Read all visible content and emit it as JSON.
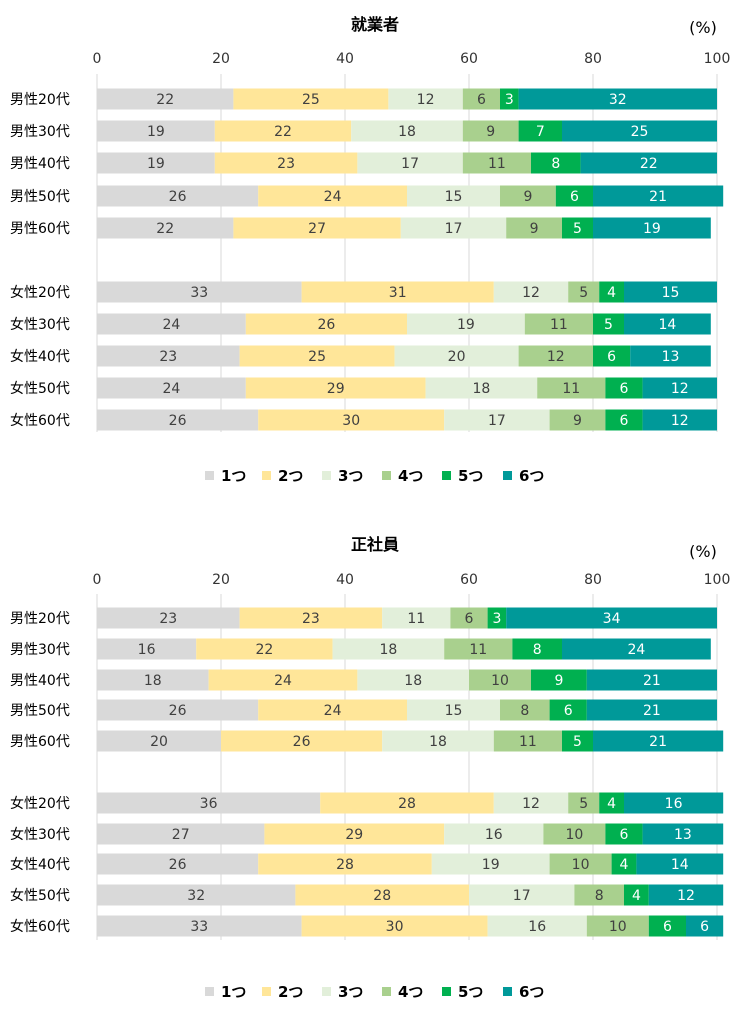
{
  "chart_data": [
    {
      "type": "bar",
      "title": "就業者",
      "unit": "(%)",
      "xlim": [
        0,
        100
      ],
      "x_ticks": [
        "0",
        "20",
        "40",
        "60",
        "80",
        "100"
      ],
      "categories": [
        "男性20代",
        "男性30代",
        "男性40代",
        "男性50代",
        "男性60代",
        "女性20代",
        "女性30代",
        "女性40代",
        "女性50代",
        "女性60代"
      ],
      "series": [
        {
          "name": "1つ",
          "color": "#d9d9d9",
          "values": [
            22,
            19,
            19,
            26,
            22,
            33,
            24,
            23,
            24,
            26
          ]
        },
        {
          "name": "2つ",
          "color": "#ffe699",
          "values": [
            25,
            22,
            23,
            24,
            27,
            31,
            26,
            25,
            29,
            30
          ]
        },
        {
          "name": "3つ",
          "color": "#e2efda",
          "values": [
            12,
            18,
            17,
            15,
            17,
            12,
            19,
            20,
            18,
            17
          ]
        },
        {
          "name": "4つ",
          "color": "#a9d08e",
          "values": [
            6,
            9,
            11,
            9,
            9,
            5,
            11,
            12,
            11,
            9
          ]
        },
        {
          "name": "5つ",
          "color": "#00b050",
          "values": [
            3,
            7,
            8,
            6,
            5,
            4,
            5,
            6,
            6,
            6
          ]
        },
        {
          "name": "6つ",
          "color": "#009999",
          "values": [
            32,
            25,
            22,
            21,
            19,
            15,
            14,
            13,
            12,
            12
          ]
        }
      ]
    },
    {
      "type": "bar",
      "title": "正社員",
      "unit": "(%)",
      "xlim": [
        0,
        100
      ],
      "x_ticks": [
        "0",
        "20",
        "40",
        "60",
        "80",
        "100"
      ],
      "categories": [
        "男性20代",
        "男性30代",
        "男性40代",
        "男性50代",
        "男性60代",
        "女性20代",
        "女性30代",
        "女性40代",
        "女性50代",
        "女性60代"
      ],
      "series": [
        {
          "name": "1つ",
          "color": "#d9d9d9",
          "values": [
            23,
            16,
            18,
            26,
            20,
            36,
            27,
            26,
            32,
            33
          ]
        },
        {
          "name": "2つ",
          "color": "#ffe699",
          "values": [
            23,
            22,
            24,
            24,
            26,
            28,
            29,
            28,
            28,
            30
          ]
        },
        {
          "name": "3つ",
          "color": "#e2efda",
          "values": [
            11,
            18,
            18,
            15,
            18,
            12,
            16,
            19,
            17,
            16
          ]
        },
        {
          "name": "4つ",
          "color": "#a9d08e",
          "values": [
            6,
            11,
            10,
            8,
            11,
            5,
            10,
            10,
            8,
            10
          ]
        },
        {
          "name": "5つ",
          "color": "#00b050",
          "values": [
            3,
            8,
            9,
            6,
            5,
            4,
            6,
            4,
            4,
            6
          ]
        },
        {
          "name": "6つ",
          "color": "#009999",
          "values": [
            34,
            24,
            21,
            21,
            21,
            16,
            13,
            14,
            12,
            6
          ]
        }
      ]
    }
  ]
}
